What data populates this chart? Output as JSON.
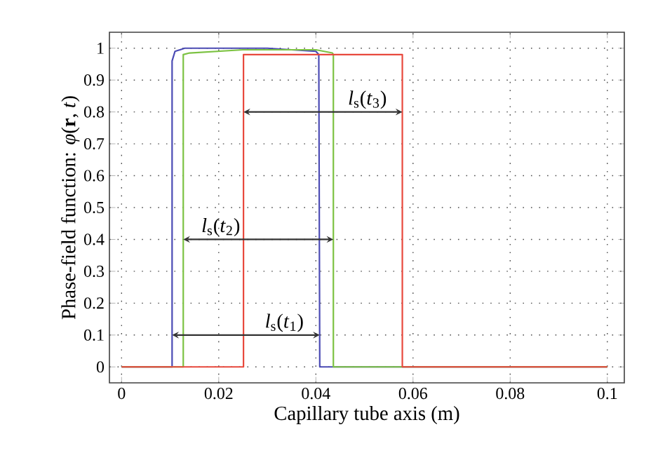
{
  "chart_data": {
    "type": "line",
    "xlabel": "Capillary tube axis (m)",
    "ylabel": "Phase-field function: *φ*(**r**, *t*)",
    "xlim": [
      -0.0025,
      0.1035
    ],
    "ylim": [
      -0.05,
      1.05
    ],
    "xticks": [
      0,
      0.02,
      0.04,
      0.06,
      0.08,
      0.1
    ],
    "yticks": [
      0,
      0.1,
      0.2,
      0.3,
      0.4,
      0.5,
      0.6,
      0.7,
      0.8,
      0.9,
      1
    ],
    "grid": true,
    "marker": "none",
    "line_style": "solid",
    "series": [
      {
        "color": "#4b4bb4",
        "x": [
          0,
          0.0104,
          0.0104,
          0.011,
          0.013,
          0.03,
          0.04,
          0.0406,
          0.0408,
          0.1
        ],
        "values": [
          0,
          0,
          0.96,
          0.99,
          1.0,
          1.0,
          0.99,
          0.98,
          0,
          0
        ]
      },
      {
        "color": "#7cc242",
        "x": [
          0,
          0.0127,
          0.0127,
          0.014,
          0.025,
          0.04,
          0.0434,
          0.0436,
          0.0436,
          0.1
        ],
        "values": [
          0,
          0,
          0.98,
          0.985,
          0.995,
          0.995,
          0.985,
          0.98,
          0,
          0
        ]
      },
      {
        "color": "#e8483c",
        "x": [
          0,
          0.0251,
          0.0251,
          0.0578,
          0.0578,
          0.1
        ],
        "values": [
          0,
          0,
          0.98,
          0.98,
          0,
          0
        ]
      }
    ],
    "annotations": [
      {
        "text": "*l*$_{s}$(*t*$_{1}$)",
        "x": 0.0408,
        "y": 0.1
      },
      {
        "text": "*l*$_{s}$(*t*$_{2}$)",
        "x": 0.0436,
        "y": 0.4
      },
      {
        "text": "*l*$_{s}$(*t*$_{3}$)",
        "x": 0.0578,
        "y": 0.8
      }
    ]
  }
}
